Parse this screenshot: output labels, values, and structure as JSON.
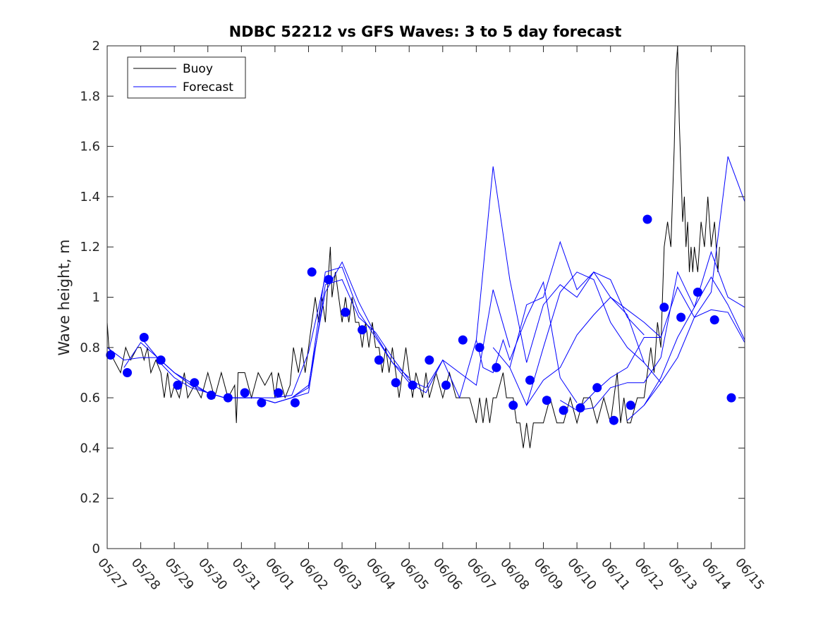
{
  "chart_data": {
    "type": "line",
    "title": "NDBC 52212 vs GFS Waves: 3 to 5 day forecast",
    "xlabel": "",
    "ylabel": "Wave height, m",
    "xlim": [
      "05/27",
      "06/15"
    ],
    "ylim": [
      0,
      2
    ],
    "y_ticks": [
      0,
      0.2,
      0.4,
      0.6,
      0.8,
      1,
      1.2,
      1.4,
      1.6,
      1.8,
      2
    ],
    "y_tick_labels": [
      "0",
      "0.2",
      "0.4",
      "0.6",
      "0.8",
      "1",
      "1.2",
      "1.4",
      "1.6",
      "1.8",
      "2"
    ],
    "x_tick_labels": [
      "05/27",
      "05/28",
      "05/29",
      "05/30",
      "05/31",
      "06/01",
      "06/02",
      "06/03",
      "06/04",
      "06/05",
      "06/06",
      "06/07",
      "06/08",
      "06/09",
      "06/10",
      "06/11",
      "06/12",
      "06/13",
      "06/14",
      "06/15"
    ],
    "grid": false,
    "legend": {
      "placement": "top-left",
      "entries": [
        {
          "label": "Buoy",
          "color": "#000000"
        },
        {
          "label": "Forecast",
          "color": "#0000ff"
        }
      ]
    },
    "buoy_series": {
      "name": "Buoy",
      "color": "#000000",
      "points": [
        [
          0.0,
          0.9
        ],
        [
          0.05,
          0.8
        ],
        [
          0.2,
          0.75
        ],
        [
          0.4,
          0.7
        ],
        [
          0.55,
          0.8
        ],
        [
          0.7,
          0.75
        ],
        [
          0.9,
          0.8
        ],
        [
          1.0,
          0.8
        ],
        [
          1.1,
          0.75
        ],
        [
          1.2,
          0.8
        ],
        [
          1.3,
          0.7
        ],
        [
          1.45,
          0.75
        ],
        [
          1.6,
          0.7
        ],
        [
          1.7,
          0.6
        ],
        [
          1.8,
          0.7
        ],
        [
          1.9,
          0.6
        ],
        [
          2.0,
          0.65
        ],
        [
          2.15,
          0.6
        ],
        [
          2.3,
          0.7
        ],
        [
          2.4,
          0.6
        ],
        [
          2.6,
          0.65
        ],
        [
          2.8,
          0.6
        ],
        [
          3.0,
          0.7
        ],
        [
          3.2,
          0.6
        ],
        [
          3.4,
          0.7
        ],
        [
          3.6,
          0.6
        ],
        [
          3.8,
          0.65
        ],
        [
          3.85,
          0.5
        ],
        [
          3.9,
          0.7
        ],
        [
          4.1,
          0.7
        ],
        [
          4.3,
          0.6
        ],
        [
          4.5,
          0.7
        ],
        [
          4.7,
          0.65
        ],
        [
          4.9,
          0.7
        ],
        [
          5.0,
          0.6
        ],
        [
          5.1,
          0.7
        ],
        [
          5.3,
          0.6
        ],
        [
          5.45,
          0.65
        ],
        [
          5.55,
          0.8
        ],
        [
          5.7,
          0.7
        ],
        [
          5.8,
          0.8
        ],
        [
          5.9,
          0.7
        ],
        [
          6.0,
          0.8
        ],
        [
          6.1,
          0.9
        ],
        [
          6.2,
          1.0
        ],
        [
          6.3,
          0.9
        ],
        [
          6.4,
          1.0
        ],
        [
          6.5,
          0.9
        ],
        [
          6.6,
          1.1
        ],
        [
          6.65,
          1.2
        ],
        [
          6.7,
          1.0
        ],
        [
          6.8,
          1.1
        ],
        [
          6.9,
          1.0
        ],
        [
          7.0,
          0.9
        ],
        [
          7.1,
          1.0
        ],
        [
          7.2,
          0.9
        ],
        [
          7.3,
          1.0
        ],
        [
          7.4,
          0.9
        ],
        [
          7.5,
          0.9
        ],
        [
          7.6,
          0.8
        ],
        [
          7.7,
          0.9
        ],
        [
          7.8,
          0.8
        ],
        [
          7.9,
          0.9
        ],
        [
          8.0,
          0.8
        ],
        [
          8.1,
          0.8
        ],
        [
          8.2,
          0.7
        ],
        [
          8.3,
          0.8
        ],
        [
          8.4,
          0.7
        ],
        [
          8.5,
          0.8
        ],
        [
          8.6,
          0.7
        ],
        [
          8.7,
          0.6
        ],
        [
          8.8,
          0.7
        ],
        [
          8.9,
          0.8
        ],
        [
          9.0,
          0.7
        ],
        [
          9.1,
          0.6
        ],
        [
          9.2,
          0.7
        ],
        [
          9.3,
          0.65
        ],
        [
          9.4,
          0.6
        ],
        [
          9.5,
          0.7
        ],
        [
          9.6,
          0.6
        ],
        [
          9.8,
          0.7
        ],
        [
          10.0,
          0.6
        ],
        [
          10.2,
          0.7
        ],
        [
          10.4,
          0.6
        ],
        [
          10.6,
          0.6
        ],
        [
          10.8,
          0.6
        ],
        [
          11.0,
          0.5
        ],
        [
          11.1,
          0.6
        ],
        [
          11.2,
          0.5
        ],
        [
          11.3,
          0.6
        ],
        [
          11.4,
          0.5
        ],
        [
          11.5,
          0.6
        ],
        [
          11.6,
          0.6
        ],
        [
          11.8,
          0.7
        ],
        [
          11.9,
          0.6
        ],
        [
          12.0,
          0.6
        ],
        [
          12.1,
          0.6
        ],
        [
          12.2,
          0.5
        ],
        [
          12.3,
          0.5
        ],
        [
          12.4,
          0.4
        ],
        [
          12.5,
          0.5
        ],
        [
          12.6,
          0.4
        ],
        [
          12.7,
          0.5
        ],
        [
          12.8,
          0.5
        ],
        [
          13.0,
          0.5
        ],
        [
          13.2,
          0.6
        ],
        [
          13.4,
          0.5
        ],
        [
          13.6,
          0.5
        ],
        [
          13.8,
          0.6
        ],
        [
          14.0,
          0.5
        ],
        [
          14.2,
          0.6
        ],
        [
          14.4,
          0.6
        ],
        [
          14.6,
          0.5
        ],
        [
          14.8,
          0.6
        ],
        [
          15.0,
          0.5
        ],
        [
          15.2,
          0.7
        ],
        [
          15.3,
          0.5
        ],
        [
          15.4,
          0.6
        ],
        [
          15.5,
          0.5
        ],
        [
          15.6,
          0.5
        ],
        [
          15.8,
          0.6
        ],
        [
          16.0,
          0.6
        ],
        [
          16.1,
          0.7
        ],
        [
          16.2,
          0.8
        ],
        [
          16.3,
          0.7
        ],
        [
          16.4,
          0.9
        ],
        [
          16.5,
          0.8
        ],
        [
          16.55,
          1.0
        ],
        [
          16.6,
          1.2
        ],
        [
          16.7,
          1.3
        ],
        [
          16.8,
          1.2
        ],
        [
          16.85,
          1.4
        ],
        [
          16.9,
          1.6
        ],
        [
          16.95,
          1.9
        ],
        [
          17.0,
          2.0
        ],
        [
          17.05,
          1.7
        ],
        [
          17.1,
          1.5
        ],
        [
          17.15,
          1.3
        ],
        [
          17.2,
          1.4
        ],
        [
          17.25,
          1.2
        ],
        [
          17.3,
          1.3
        ],
        [
          17.35,
          1.1
        ],
        [
          17.4,
          1.2
        ],
        [
          17.45,
          1.1
        ],
        [
          17.5,
          1.2
        ],
        [
          17.6,
          1.1
        ],
        [
          17.7,
          1.3
        ],
        [
          17.8,
          1.2
        ],
        [
          17.9,
          1.4
        ],
        [
          18.0,
          1.2
        ],
        [
          18.1,
          1.3
        ],
        [
          18.2,
          1.1
        ],
        [
          18.25,
          1.2
        ]
      ]
    },
    "forecast_series": {
      "name": "Forecast",
      "color": "#0000ff",
      "runs": [
        {
          "x": [
            0.0,
            0.5,
            1.0,
            1.5,
            2.0,
            2.5,
            3.0,
            3.5,
            4.0,
            4.5,
            5.0,
            5.5,
            6.0,
            6.5
          ],
          "y": [
            0.8,
            0.75,
            0.76,
            0.76,
            0.7,
            0.65,
            0.62,
            0.6,
            0.6,
            0.6,
            0.6,
            0.61,
            0.78,
            1.08
          ]
        },
        {
          "x": [
            0.5,
            1.0,
            1.5,
            2.0,
            2.5,
            3.0,
            3.5,
            4.0,
            4.5,
            5.0,
            5.5,
            6.0,
            6.5,
            7.0,
            7.5,
            8.0,
            8.5,
            9.0
          ],
          "y": [
            0.72,
            0.82,
            0.76,
            0.7,
            0.66,
            0.62,
            0.6,
            0.6,
            0.6,
            0.58,
            0.6,
            0.65,
            1.02,
            1.14,
            0.98,
            0.85,
            0.74,
            0.68
          ]
        },
        {
          "x": [
            1.0,
            1.5,
            2.0,
            2.5,
            3.0,
            3.5,
            4.0,
            4.5,
            5.0,
            5.5,
            6.0,
            6.5,
            7.0,
            7.5,
            8.0,
            8.5,
            9.0,
            9.5
          ],
          "y": [
            0.84,
            0.76,
            0.7,
            0.66,
            0.62,
            0.6,
            0.6,
            0.6,
            0.58,
            0.6,
            0.64,
            1.1,
            1.12,
            0.94,
            0.84,
            0.74,
            0.66,
            0.62
          ]
        },
        {
          "x": [
            1.5,
            2.0,
            2.5,
            3.0,
            3.5,
            4.0,
            4.5,
            5.0,
            5.5,
            6.0,
            6.5,
            7.0,
            7.5,
            8.0,
            8.5,
            9.0,
            9.5,
            10.0,
            10.5,
            11.0,
            11.5,
            12.0
          ],
          "y": [
            0.75,
            0.68,
            0.64,
            0.62,
            0.6,
            0.6,
            0.6,
            0.58,
            0.6,
            0.62,
            1.05,
            1.07,
            0.92,
            0.86,
            0.76,
            0.67,
            0.64,
            0.75,
            0.7,
            0.65,
            1.03,
            0.8
          ]
        },
        {
          "x": [
            9.5,
            10.0,
            10.5,
            11.0,
            11.2,
            11.5,
            11.8,
            12.0,
            12.5,
            13.0,
            13.5,
            14.0
          ],
          "y": [
            0.62,
            0.75,
            0.6,
            0.83,
            0.72,
            0.7,
            0.83,
            0.75,
            0.92,
            1.06,
            0.68,
            0.58
          ]
        },
        {
          "x": [
            11.0,
            11.5,
            12.0,
            12.5,
            13.0,
            13.5,
            14.0,
            14.5,
            15.0,
            15.5,
            16.0
          ],
          "y": [
            0.83,
            1.52,
            1.07,
            0.74,
            0.97,
            1.05,
            1.0,
            1.1,
            1.07,
            0.92,
            0.85
          ]
        },
        {
          "x": [
            11.5,
            12.0,
            12.5,
            13.0,
            13.5,
            14.0,
            14.5,
            15.0,
            15.5,
            16.0,
            16.5
          ],
          "y": [
            0.8,
            0.72,
            0.97,
            1.0,
            1.22,
            1.03,
            1.1,
            1.0,
            0.95,
            0.9,
            0.84
          ]
        },
        {
          "x": [
            12.0,
            12.5,
            13.0,
            13.5,
            14.0,
            14.5,
            15.0,
            15.5,
            16.0
          ],
          "y": [
            0.72,
            0.57,
            0.8,
            1.02,
            1.1,
            1.07,
            0.9,
            0.8,
            0.74
          ]
        },
        {
          "x": [
            12.5,
            13.0,
            13.5,
            14.0,
            14.5,
            15.0,
            15.5,
            16.0,
            16.5
          ],
          "y": [
            0.57,
            0.67,
            0.72,
            0.85,
            0.93,
            1.0,
            0.93,
            0.74,
            0.66
          ]
        },
        {
          "x": [
            13.5,
            14.0,
            14.5,
            15.0,
            15.5,
            16.0,
            16.5,
            17.0,
            17.5,
            18.0,
            18.5,
            19.0
          ],
          "y": [
            0.59,
            0.55,
            0.62,
            0.68,
            0.72,
            0.84,
            0.84,
            1.04,
            0.92,
            1.02,
            1.56,
            1.38
          ]
        },
        {
          "x": [
            14.0,
            14.5,
            15.0,
            15.5,
            16.0,
            16.5,
            17.0,
            17.5,
            18.0,
            18.5,
            19.0
          ],
          "y": [
            0.55,
            0.56,
            0.64,
            0.66,
            0.66,
            0.76,
            1.1,
            0.96,
            1.18,
            1.0,
            0.96
          ]
        },
        {
          "x": [
            15.5,
            16.0,
            16.5,
            17.0,
            17.5,
            18.0,
            18.5,
            19.0
          ],
          "y": [
            0.51,
            0.57,
            0.68,
            0.84,
            0.96,
            1.08,
            0.97,
            0.83
          ]
        },
        {
          "x": [
            16.0,
            16.5,
            17.0,
            17.5,
            18.0,
            18.5,
            19.0
          ],
          "y": [
            0.57,
            0.66,
            0.76,
            0.92,
            0.95,
            0.94,
            0.82
          ]
        }
      ]
    },
    "forecast_markers": {
      "color": "#0000ff",
      "x": [
        0.1,
        0.6,
        1.1,
        1.6,
        2.1,
        2.6,
        3.1,
        3.6,
        4.1,
        4.6,
        5.1,
        5.6,
        6.1,
        6.6,
        7.1,
        7.6,
        8.1,
        8.6,
        9.1,
        9.6,
        10.1,
        10.6,
        11.1,
        11.6,
        12.1,
        12.6,
        13.1,
        13.6,
        14.1,
        14.6,
        15.1,
        15.6,
        16.1,
        16.6,
        17.1,
        17.6,
        18.1,
        18.6
      ],
      "y": [
        0.77,
        0.7,
        0.84,
        0.75,
        0.65,
        0.66,
        0.61,
        0.6,
        0.62,
        0.58,
        0.62,
        0.58,
        1.1,
        1.07,
        0.94,
        0.87,
        0.75,
        0.66,
        0.65,
        0.75,
        0.65,
        0.83,
        0.8,
        0.72,
        0.57,
        0.67,
        0.59,
        0.55,
        0.56,
        0.64,
        0.51,
        0.57,
        1.31,
        0.96,
        0.92,
        1.02,
        0.91,
        0.6
      ]
    }
  }
}
